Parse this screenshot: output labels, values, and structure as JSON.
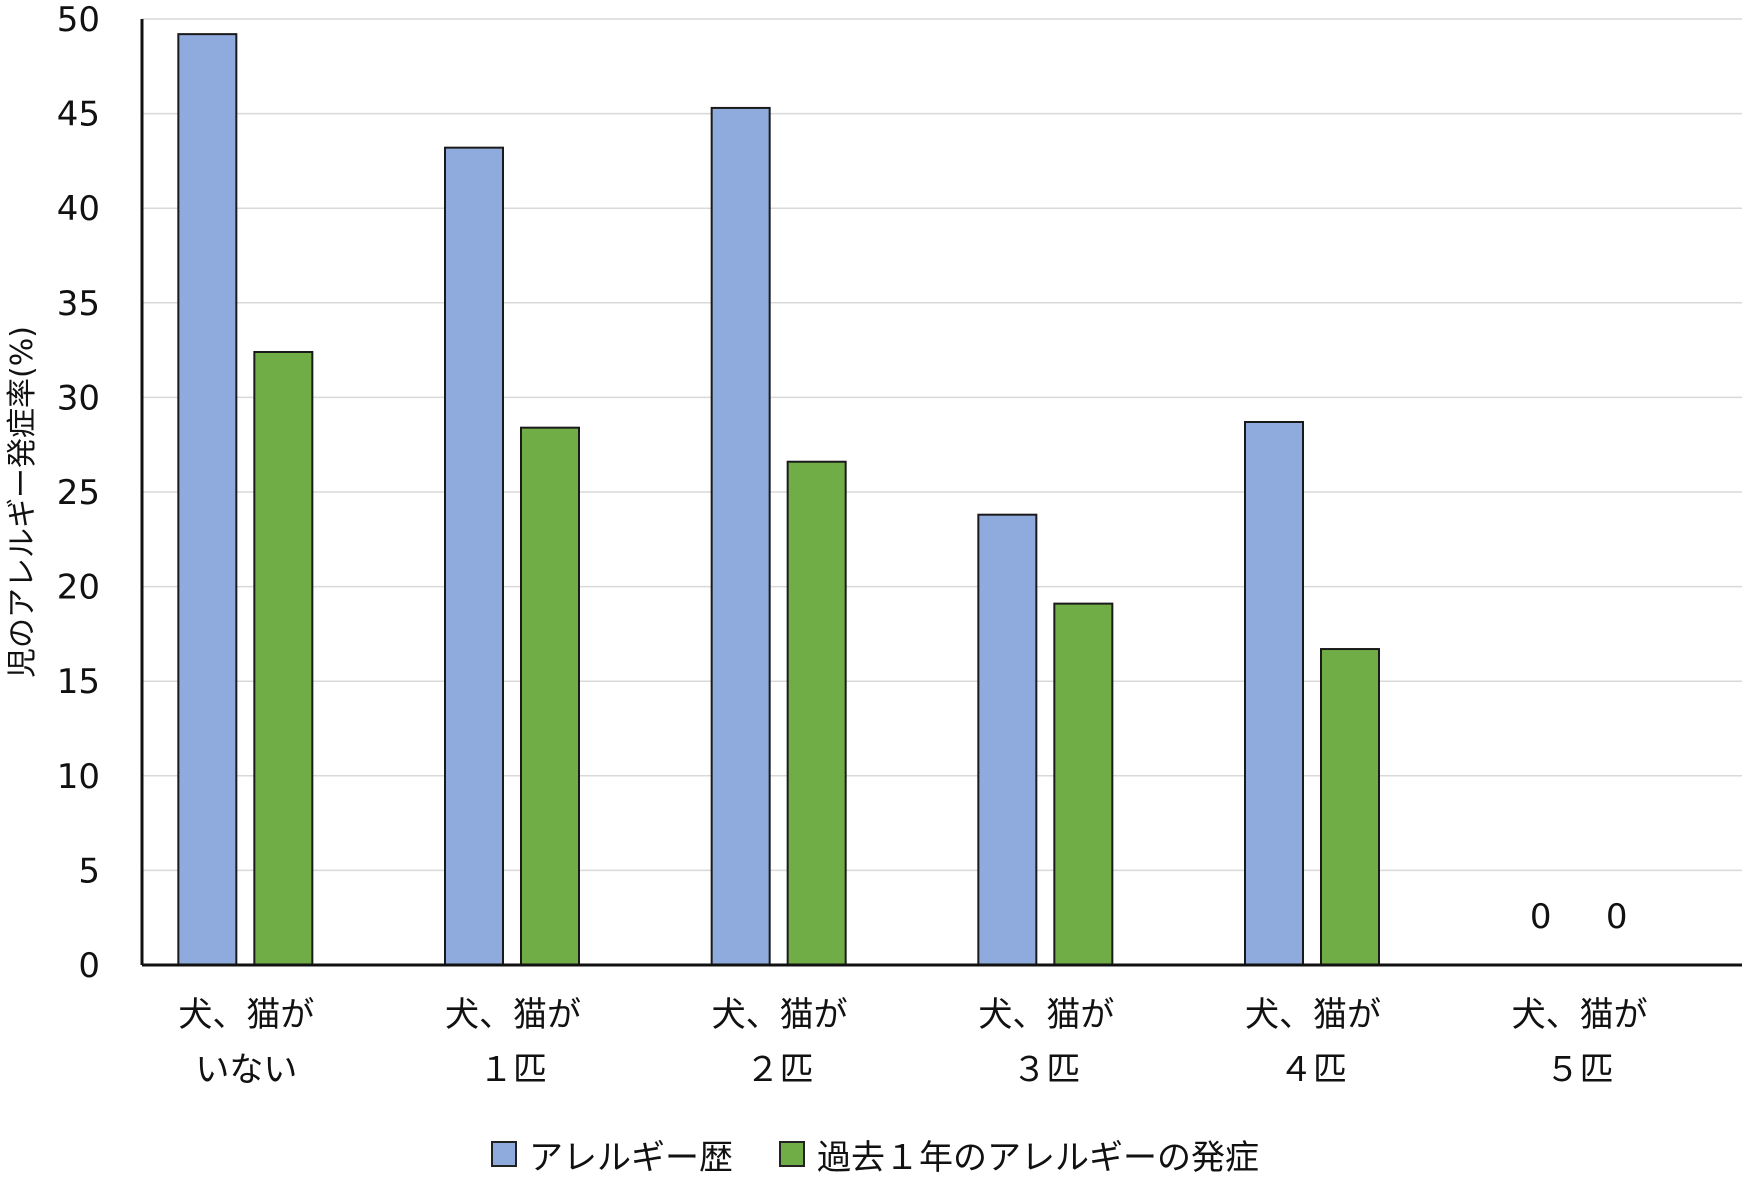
{
  "chart_data": {
    "type": "bar",
    "ylabel": "児のアレルギー発症率(%)",
    "xlabel": "",
    "ylim": [
      0,
      50
    ],
    "yticks": [
      0,
      5,
      10,
      15,
      20,
      25,
      30,
      35,
      40,
      45,
      50
    ],
    "grid": true,
    "legend_position": "bottom",
    "categories": [
      [
        "犬、猫が",
        "いない"
      ],
      [
        "犬、猫が",
        "１匹"
      ],
      [
        "犬、猫が",
        "２匹"
      ],
      [
        "犬、猫が",
        "３匹"
      ],
      [
        "犬、猫が",
        "４匹"
      ],
      [
        "犬、猫が",
        "５匹"
      ]
    ],
    "series": [
      {
        "name": "アレルギー歴",
        "color": "#8FAADC",
        "values": [
          49.2,
          43.2,
          45.3,
          23.8,
          28.7,
          0
        ]
      },
      {
        "name": "過去１年のアレルギーの発症",
        "color": "#70AD47",
        "values": [
          32.4,
          28.4,
          26.6,
          19.1,
          16.7,
          0
        ]
      }
    ],
    "data_labels": [
      {
        "category_index": 5,
        "series_index": 0,
        "text": "0"
      },
      {
        "category_index": 5,
        "series_index": 1,
        "text": "0"
      }
    ]
  }
}
